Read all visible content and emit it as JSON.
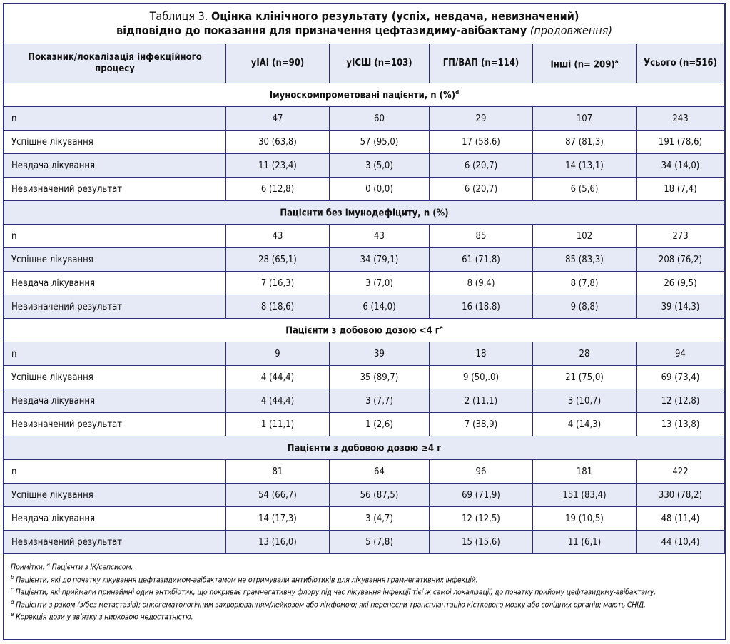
{
  "title": {
    "prefix": "Таблиця 3.",
    "main": "Оцінка клінічного результату (успіх, невдача, невизначений)",
    "line2": "відповідно до показання для призначення цефтазидиму-авібактаму",
    "cont": "(продовження)"
  },
  "header": {
    "col0": "Показник/локалізація інфекційного процесу",
    "cols": [
      "уІАІ (n=90)",
      "уІСШ (n=103)",
      "ГП/ВАП (n=114)",
      "Інші (n= 209)",
      "Усього (n=516)"
    ],
    "col4_sup": "a"
  },
  "sections": [
    {
      "title": "Імуноскомпрометовані пацієнти, n (%)",
      "sup": "d",
      "rows": [
        {
          "label": "n",
          "values": [
            "47",
            "60",
            "29",
            "107",
            "243"
          ]
        },
        {
          "label": "Успішне лікування",
          "values": [
            "30 (63,8)",
            "57 (95,0)",
            "17 (58,6)",
            "87 (81,3)",
            "191 (78,6)"
          ]
        },
        {
          "label": "Невдача лікування",
          "values": [
            "11 (23,4)",
            "3 (5,0)",
            "6 (20,7)",
            "14 (13,1)",
            "34 (14,0)"
          ]
        },
        {
          "label": "Невизначений результат",
          "values": [
            "6 (12,8)",
            "0 (0,0)",
            "6 (20,7)",
            "6 (5,6)",
            "18 (7,4)"
          ]
        }
      ]
    },
    {
      "title": "Пацієнти без імунодефіциту, n (%)",
      "sup": "",
      "rows": [
        {
          "label": "n",
          "values": [
            "43",
            "43",
            "85",
            "102",
            "273"
          ]
        },
        {
          "label": "Успішне лікування",
          "values": [
            "28 (65,1)",
            "34 (79,1)",
            "61 (71,8)",
            "85 (83,3)",
            "208 (76,2)"
          ]
        },
        {
          "label": "Невдача лікування",
          "values": [
            "7 (16,3)",
            "3 (7,0)",
            "8 (9,4)",
            "8 (7,8)",
            "26 (9,5)"
          ]
        },
        {
          "label": "Невизначений результат",
          "values": [
            "8 (18,6)",
            "6 (14,0)",
            "16 (18,8)",
            "9 (8,8)",
            "39 (14,3)"
          ]
        }
      ]
    },
    {
      "title": "Пацієнти з добовою дозою <4 г",
      "sup": "e",
      "rows": [
        {
          "label": "n",
          "values": [
            "9",
            "39",
            "18",
            "28",
            "94"
          ]
        },
        {
          "label": "Успішне лікування",
          "values": [
            "4 (44,4)",
            "35 (89,7)",
            "9 (50,.0)",
            "21 (75,0)",
            "69 (73,4)"
          ]
        },
        {
          "label": "Невдача лікування",
          "values": [
            "4 (44,4)",
            "3 (7,7)",
            "2 (11,1)",
            "3 (10,7)",
            "12 (12,8)"
          ]
        },
        {
          "label": "Невизначений результат",
          "values": [
            "1 (11,1)",
            "1 (2,6)",
            "7 (38,9)",
            "4 (14,3)",
            "13 (13,8)"
          ]
        }
      ]
    },
    {
      "title": "Пацієнти з добовою дозою ≥4 г",
      "sup": "",
      "rows": [
        {
          "label": "n",
          "values": [
            "81",
            "64",
            "96",
            "181",
            "422"
          ]
        },
        {
          "label": "Успішне лікування",
          "values": [
            "54 (66,7)",
            "56 (87,5)",
            "69 (71,9)",
            "151 (83,4)",
            "330 (78,2)"
          ]
        },
        {
          "label": "Невдача лікування",
          "values": [
            "14 (17,3)",
            "3 (4,7)",
            "12 (12,5)",
            "19 (10,5)",
            "48 (11,4)"
          ]
        },
        {
          "label": "Невизначений результат",
          "values": [
            "13 (16,0)",
            "5 (7,8)",
            "15 (15,6)",
            "11 (6,1)",
            "44 (10,4)"
          ]
        }
      ]
    }
  ],
  "notes": [
    {
      "sup": "a",
      "text": "Пацієнти з ІК/сепсисом.",
      "prefix": "Примітки: "
    },
    {
      "sup": "b",
      "text": "Пацієнти, які до початку лікування цефтазидимом-авібактамом не отримували антибіотиків для лікування грамнегативних інфекцій."
    },
    {
      "sup": "c",
      "text": "Пацієнти, які приймали принаймні один антибіотик, що покриває грамнегативну флору під час лікування інфекції тієї ж самої локалізації, до початку прийому цефтазидиму-авібактаму."
    },
    {
      "sup": "d",
      "text": "Пацієнти з раком (з/без метастазів); онкогематологічним захворюванням/лейкозом або лімфомою; які перенесли трансплантацію кісткового мозку або солідних органів; мають СНІД."
    },
    {
      "sup": "e",
      "text": "Корекція дози у зв’язку з нирковою недостатністю."
    }
  ]
}
